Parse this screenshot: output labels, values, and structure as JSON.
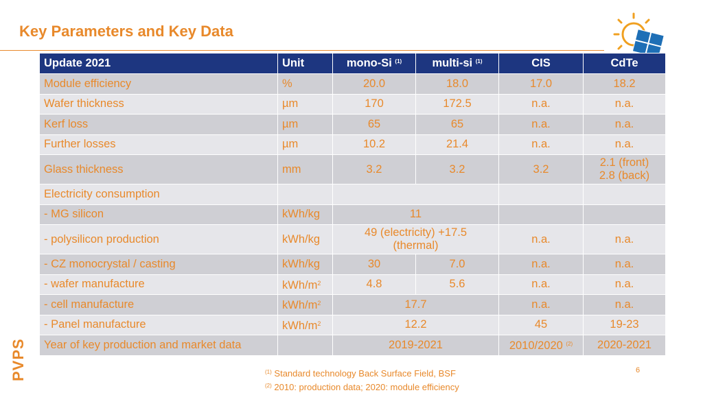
{
  "title": "Key Parameters and Key Data",
  "brand": "PVPS",
  "page_number": "6",
  "table": {
    "header": {
      "col1": "Update 2021",
      "unit": "Unit",
      "mono": "mono-Si",
      "mono_fn": "(1)",
      "multi": "multi-si",
      "multi_fn": "(1)",
      "cis": "CIS",
      "cdte": "CdTe"
    },
    "rows": [
      {
        "label": "Module efficiency",
        "unit": "%",
        "mono": "20.0",
        "multi": "18.0",
        "cis": "17.0",
        "cdte": "18.2"
      },
      {
        "label": "Wafer thickness",
        "unit": "µm",
        "mono": "170",
        "multi": "172.5",
        "cis": "n.a.",
        "cdte": "n.a."
      },
      {
        "label": "Kerf loss",
        "unit": "µm",
        "mono": "65",
        "multi": "65",
        "cis": "n.a.",
        "cdte": "n.a."
      },
      {
        "label": "Further losses",
        "unit": "µm",
        "mono": "10.2",
        "multi": "21.4",
        "cis": "n.a.",
        "cdte": "n.a."
      },
      {
        "label": "Glass thickness",
        "unit": "mm",
        "mono": "3.2",
        "multi": "3.2",
        "cis": "3.2",
        "cdte_line1": "2.1 (front)",
        "cdte_line2": "2.8 (back)"
      },
      {
        "label": "Electricity consumption"
      },
      {
        "label": "- MG silicon",
        "unit": "kWh/kg",
        "mono_multi": "11"
      },
      {
        "label": "- polysilicon production",
        "unit": "kWh/kg",
        "mono_multi_line1": "49 (electricity) +17.5",
        "mono_multi_line2": "(thermal)",
        "cis": "n.a.",
        "cdte": "n.a."
      },
      {
        "label": "- CZ monocrystal / casting",
        "unit": "kWh/kg",
        "mono": "30",
        "multi": "7.0",
        "cis": "n.a.",
        "cdte": "n.a."
      },
      {
        "label": "- wafer manufacture",
        "unit": "kWh/m",
        "unit_sup": "2",
        "mono": "4.8",
        "multi": "5.6",
        "cis": "n.a.",
        "cdte": "n.a."
      },
      {
        "label": "- cell manufacture",
        "unit": "kWh/m",
        "unit_sup": "2",
        "mono_multi": "17.7",
        "cis": "n.a.",
        "cdte": "n.a."
      },
      {
        "label": "- Panel manufacture",
        "unit": "kWh/m",
        "unit_sup": "2",
        "mono_multi": "12.2",
        "cis": "45",
        "cdte": "19-23"
      },
      {
        "label": "Year of key production and market data",
        "mono_multi": "2019-2021",
        "cis": "2010/2020",
        "cis_fn": "(2)",
        "cdte": "2020-2021"
      }
    ]
  },
  "footnotes": [
    {
      "mark": "(1)",
      "text": "Standard technology Back Surface Field, BSF"
    },
    {
      "mark": "(2)",
      "text": "2010: production data; 2020: module efficiency"
    }
  ],
  "colors": {
    "accent": "#e8892b",
    "header_bg": "#1d3680",
    "row_dark": "#cfcfd4",
    "row_light": "#e6e6ea"
  },
  "logo_icon": "sun-and-solar-panel-icon"
}
